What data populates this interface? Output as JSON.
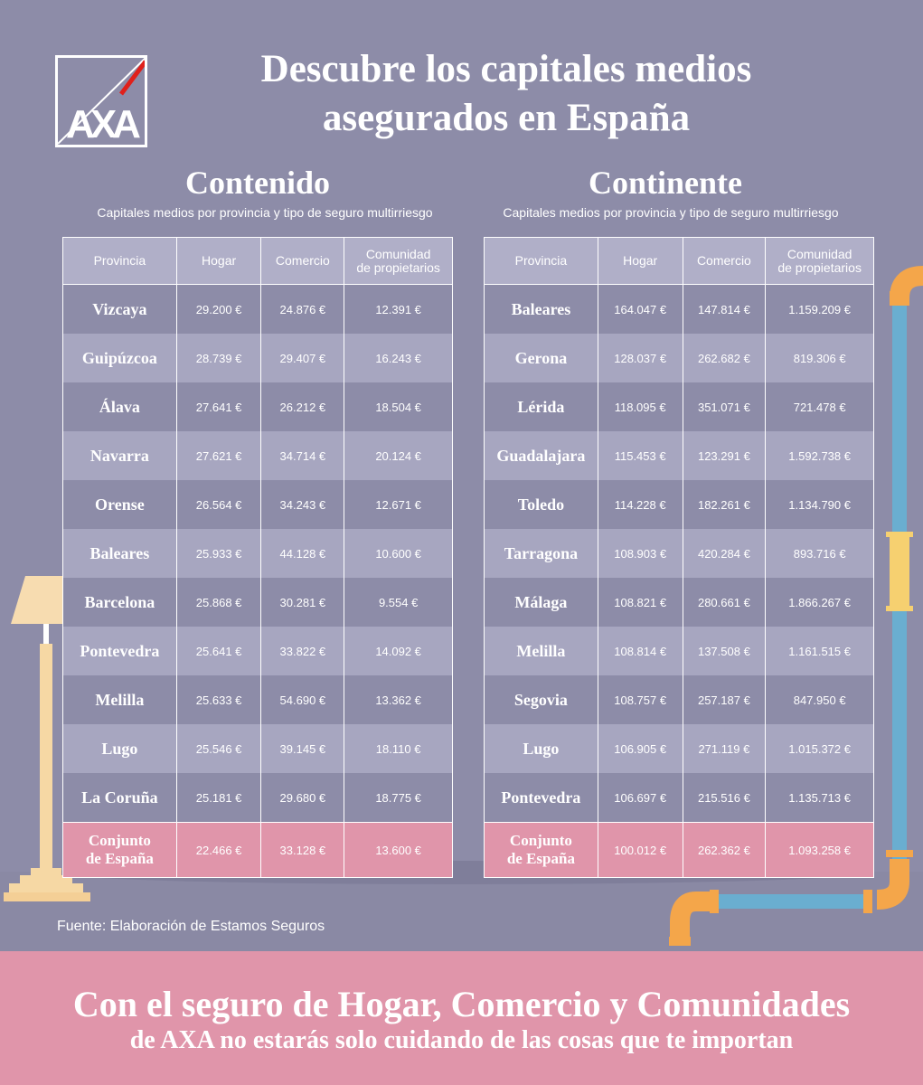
{
  "brand": {
    "logo_text": "AXA",
    "accent": "#e0201b"
  },
  "title": {
    "line1": "Descubre los capitales medios",
    "line2": "asegurados en España"
  },
  "columns": {
    "province": "Provincia",
    "hogar": "Hogar",
    "comercio": "Comercio",
    "comunidad_l1": "Comunidad",
    "comunidad_l2": "de propietarios"
  },
  "contenido": {
    "title": "Contenido",
    "subtitle": "Capitales medios por provincia y tipo de seguro multirriesgo",
    "rows": [
      {
        "province": "Vizcaya",
        "hogar": "29.200 €",
        "comercio": "24.876 €",
        "comunidad": "12.391 €"
      },
      {
        "province": "Guipúzcoa",
        "hogar": "28.739 €",
        "comercio": "29.407 €",
        "comunidad": "16.243 €"
      },
      {
        "province": "Álava",
        "hogar": "27.641 €",
        "comercio": "26.212 €",
        "comunidad": "18.504 €"
      },
      {
        "province": "Navarra",
        "hogar": "27.621 €",
        "comercio": "34.714 €",
        "comunidad": "20.124 €"
      },
      {
        "province": "Orense",
        "hogar": "26.564 €",
        "comercio": "34.243 €",
        "comunidad": "12.671 €"
      },
      {
        "province": "Baleares",
        "hogar": "25.933 €",
        "comercio": "44.128 €",
        "comunidad": "10.600 €"
      },
      {
        "province": "Barcelona",
        "hogar": "25.868 €",
        "comercio": "30.281 €",
        "comunidad": "9.554 €"
      },
      {
        "province": "Pontevedra",
        "hogar": "25.641 €",
        "comercio": "33.822 €",
        "comunidad": "14.092 €"
      },
      {
        "province": "Melilla",
        "hogar": "25.633 €",
        "comercio": "54.690 €",
        "comunidad": "13.362 €"
      },
      {
        "province": "Lugo",
        "hogar": "25.546 €",
        "comercio": "39.145 €",
        "comunidad": "18.110 €"
      },
      {
        "province": "La Coruña",
        "hogar": "25.181 €",
        "comercio": "29.680 €",
        "comunidad": "18.775 €"
      }
    ],
    "total": {
      "l1": "Conjunto",
      "l2": "de España",
      "hogar": "22.466 €",
      "comercio": "33.128 €",
      "comunidad": "13.600 €"
    }
  },
  "continente": {
    "title": "Continente",
    "subtitle": "Capitales medios por provincia y tipo de seguro multirriesgo",
    "rows": [
      {
        "province": "Baleares",
        "hogar": "164.047 €",
        "comercio": "147.814 €",
        "comunidad": "1.159.209 €"
      },
      {
        "province": "Gerona",
        "hogar": "128.037 €",
        "comercio": "262.682 €",
        "comunidad": "819.306 €"
      },
      {
        "province": "Lérida",
        "hogar": "118.095 €",
        "comercio": "351.071 €",
        "comunidad": "721.478 €"
      },
      {
        "province": "Guadalajara",
        "hogar": "115.453 €",
        "comercio": "123.291 €",
        "comunidad": "1.592.738 €"
      },
      {
        "province": "Toledo",
        "hogar": "114.228 €",
        "comercio": "182.261 €",
        "comunidad": "1.134.790 €"
      },
      {
        "province": "Tarragona",
        "hogar": "108.903 €",
        "comercio": "420.284 €",
        "comunidad": "893.716 €"
      },
      {
        "province": "Málaga",
        "hogar": "108.821 €",
        "comercio": "280.661 €",
        "comunidad": "1.866.267 €"
      },
      {
        "province": "Melilla",
        "hogar": "108.814 €",
        "comercio": "137.508 €",
        "comunidad": "1.161.515 €"
      },
      {
        "province": "Segovia",
        "hogar": "108.757 €",
        "comercio": "257.187 €",
        "comunidad": "847.950 €"
      },
      {
        "province": "Lugo",
        "hogar": "106.905 €",
        "comercio": "271.119 €",
        "comunidad": "1.015.372 €"
      },
      {
        "province": "Pontevedra",
        "hogar": "106.697 €",
        "comercio": "215.516 €",
        "comunidad": "1.135.713 €"
      }
    ],
    "total": {
      "l1": "Conjunto",
      "l2": "de España",
      "hogar": "100.012 €",
      "comercio": "262.362 €",
      "comunidad": "1.093.258 €"
    }
  },
  "source": "Fuente: Elaboración de Estamos Seguros",
  "footer": {
    "line1": "Con el seguro de Hogar, Comercio y Comunidades",
    "line2": "de AXA no estarás solo cuidando de las cosas que te importan"
  }
}
